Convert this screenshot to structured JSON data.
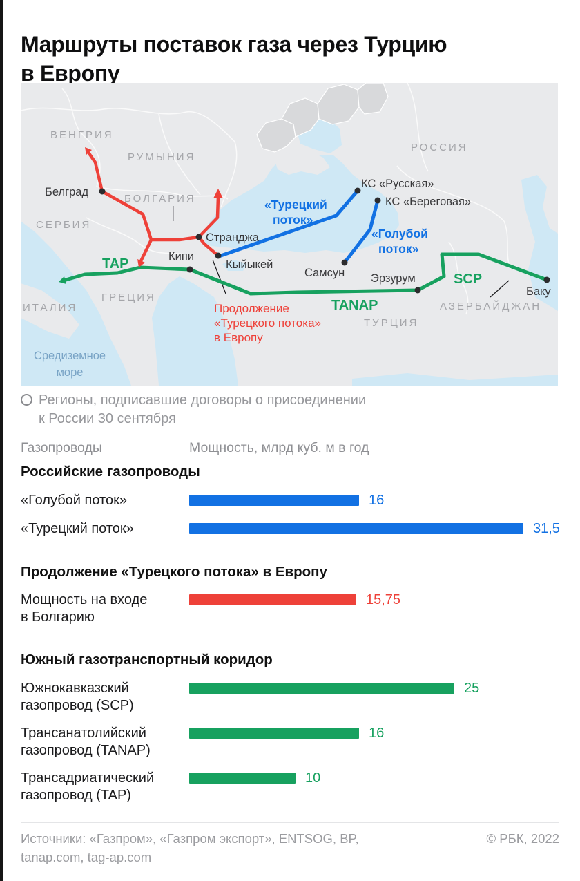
{
  "title": {
    "line1": "Маршруты поставок газа через Турцию",
    "line2": "в Европу"
  },
  "colors": {
    "blue": "#1271e3",
    "green": "#17a15f",
    "red": "#ee4139",
    "sea": "#cfe8f5",
    "land": "#e9eaec",
    "region_highlight": "#d8d9db",
    "dot": "#2c2c2e"
  },
  "map": {
    "countries": {
      "hungary": "ВЕНГРИЯ",
      "romania": "РУМЫНИЯ",
      "bulgaria": "БОЛГАРИЯ",
      "serbia": "СЕРБИЯ",
      "italy": "ИТАЛИЯ",
      "greece": "ГРЕЦИЯ",
      "russia": "РОССИЯ",
      "turkey": "ТУРЦИЯ",
      "azerbaijan": "АЗЕРБАЙДЖАН"
    },
    "sea_label": {
      "line1": "Средиземное",
      "line2": "море"
    },
    "cities": {
      "belgrade": "Белград",
      "strandzha": "Странджа",
      "kipi": "Кипи",
      "kiyikoy": "Кыйыкей",
      "samsun": "Самсун",
      "erzurum": "Эрзурум",
      "baku": "Баку",
      "ks_russkaya": "КС «Русская»",
      "ks_beregovaya": "КС «Береговая»"
    },
    "pipelines": {
      "turkish_stream_l1": "«Турецкий",
      "turkish_stream_l2": "поток»",
      "blue_stream_l1": "«Голубой",
      "blue_stream_l2": "поток»",
      "tap": "TAP",
      "tanap": "TANAP",
      "scp": "SCP",
      "extension_l1": "Продолжение",
      "extension_l2": "«Турецкого потока»",
      "extension_l3": "в Европу"
    }
  },
  "legend": {
    "line1": "Регионы, подписавшие договоры о присоединении",
    "line2": "к России 30 сентября"
  },
  "table_headers": {
    "col1": "Газопроводы",
    "col2": "Мощность, млрд куб. м в год"
  },
  "chart_data": {
    "type": "bar",
    "orientation": "horizontal",
    "unit": "млрд куб. м в год",
    "max_value": 31.5,
    "sections": [
      {
        "header": "Российские газопроводы",
        "color": "#1271e3",
        "rows": [
          {
            "label_lines": [
              "«Голубой поток»"
            ],
            "value": 16,
            "value_label": "16"
          },
          {
            "label_lines": [
              "«Турецкий поток»"
            ],
            "value": 31.5,
            "value_label": "31,5"
          }
        ]
      },
      {
        "header": "Продолжение «Турецкого потока» в Европу",
        "color": "#ee4139",
        "rows": [
          {
            "label_lines": [
              "Мощность на входе",
              "в Болгарию"
            ],
            "value": 15.75,
            "value_label": "15,75"
          }
        ]
      },
      {
        "header": "Южный газотранспортный коридор",
        "color": "#17a15f",
        "rows": [
          {
            "label_lines": [
              "Южнокавказский",
              "газопровод (SCP)"
            ],
            "value": 25,
            "value_label": "25"
          },
          {
            "label_lines": [
              "Трансанатолийский",
              "газопровод (TANAP)"
            ],
            "value": 16,
            "value_label": "16"
          },
          {
            "label_lines": [
              "Трансадриатический",
              "газопровод (TAP)"
            ],
            "value": 10,
            "value_label": "10"
          }
        ]
      }
    ]
  },
  "footer": {
    "sources_line1": "Источники: «Газпром», «Газпром экспорт», ENTSOG, BP,",
    "sources_line2": "tanap.com, tag-ap.com",
    "copyright": "© РБК, 2022"
  }
}
